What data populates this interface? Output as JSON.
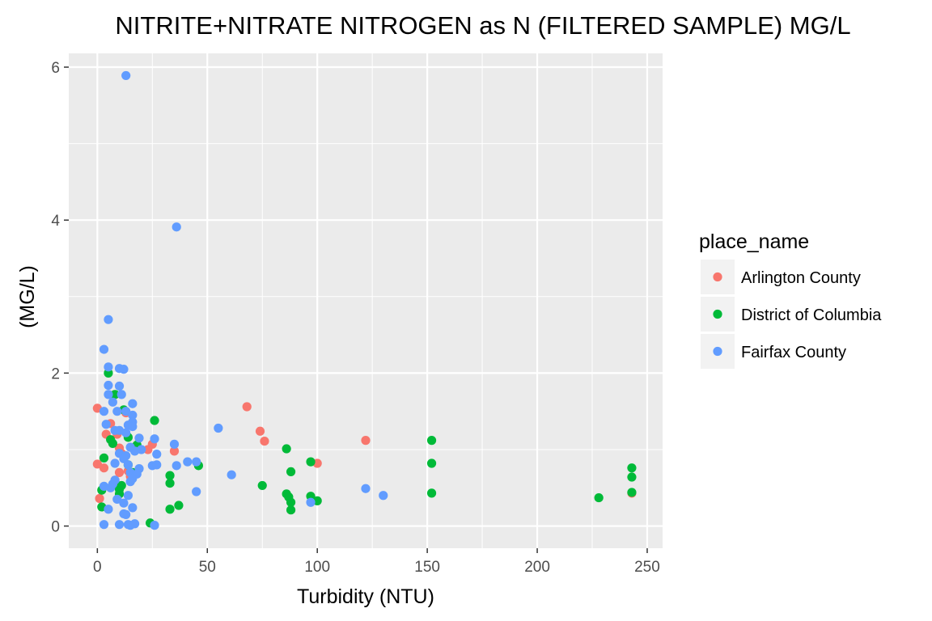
{
  "chart_data": {
    "type": "scatter",
    "title": "NITRITE+NITRATE NITROGEN as N (FILTERED SAMPLE) MG/L",
    "xlabel": "Turbidity (NTU)",
    "ylabel": "(MG/L)",
    "xlim": [
      -13,
      257
    ],
    "ylim": [
      -0.29,
      6.18
    ],
    "x_ticks": [
      0,
      50,
      100,
      150,
      200,
      250
    ],
    "y_ticks": [
      0,
      2,
      4,
      6
    ],
    "grid": true,
    "legend": {
      "title": "place_name",
      "position": "right"
    },
    "series": [
      {
        "name": "Arlington County",
        "color": "#F8766D",
        "points": [
          [
            0,
            1.54
          ],
          [
            0,
            0.81
          ],
          [
            1,
            0.36
          ],
          [
            3,
            0.76
          ],
          [
            4,
            1.2
          ],
          [
            6,
            1.34
          ],
          [
            8,
            0.6
          ],
          [
            9,
            1.2
          ],
          [
            10,
            1.02
          ],
          [
            10,
            0.7
          ],
          [
            11,
            0.95
          ],
          [
            13,
            1.48
          ],
          [
            14,
            0.72
          ],
          [
            15,
            0.65
          ],
          [
            23,
            1.0
          ],
          [
            25,
            1.07
          ],
          [
            35,
            0.98
          ],
          [
            68,
            1.56
          ],
          [
            74,
            1.24
          ],
          [
            76,
            1.11
          ],
          [
            100,
            0.82
          ],
          [
            122,
            1.12
          ],
          [
            243,
            0.43
          ]
        ]
      },
      {
        "name": "District of Columbia",
        "color": "#00BA38",
        "points": [
          [
            2,
            0.47
          ],
          [
            2,
            0.25
          ],
          [
            3,
            0.89
          ],
          [
            5,
            2.0
          ],
          [
            6,
            1.13
          ],
          [
            7,
            1.08
          ],
          [
            8,
            1.72
          ],
          [
            10,
            0.48
          ],
          [
            10,
            0.42
          ],
          [
            11,
            0.53
          ],
          [
            12,
            1.52
          ],
          [
            14,
            1.16
          ],
          [
            14,
            0.8
          ],
          [
            16,
            0.7
          ],
          [
            18,
            1.06
          ],
          [
            24,
            0.04
          ],
          [
            26,
            1.38
          ],
          [
            33,
            0.66
          ],
          [
            33,
            0.56
          ],
          [
            33,
            0.22
          ],
          [
            37,
            0.27
          ],
          [
            46,
            0.79
          ],
          [
            75,
            0.53
          ],
          [
            86,
            1.01
          ],
          [
            86,
            0.42
          ],
          [
            87,
            0.38
          ],
          [
            88,
            0.71
          ],
          [
            88,
            0.31
          ],
          [
            88,
            0.21
          ],
          [
            97,
            0.84
          ],
          [
            97,
            0.39
          ],
          [
            100,
            0.33
          ],
          [
            152,
            1.12
          ],
          [
            152,
            0.82
          ],
          [
            152,
            0.43
          ],
          [
            228,
            0.37
          ],
          [
            243,
            0.76
          ],
          [
            243,
            0.64
          ],
          [
            243,
            0.44
          ]
        ]
      },
      {
        "name": "Fairfax County",
        "color": "#619CFF",
        "points": [
          [
            13,
            5.89
          ],
          [
            36,
            3.91
          ],
          [
            5,
            2.7
          ],
          [
            3,
            2.31
          ],
          [
            5,
            2.08
          ],
          [
            10,
            2.06
          ],
          [
            12,
            2.05
          ],
          [
            5,
            1.84
          ],
          [
            10,
            1.83
          ],
          [
            5,
            1.72
          ],
          [
            11,
            1.72
          ],
          [
            7,
            1.62
          ],
          [
            16,
            1.6
          ],
          [
            3,
            1.5
          ],
          [
            9,
            1.5
          ],
          [
            13,
            1.5
          ],
          [
            16,
            1.45
          ],
          [
            16,
            1.36
          ],
          [
            4,
            1.33
          ],
          [
            14,
            1.32
          ],
          [
            16,
            1.3
          ],
          [
            8,
            1.25
          ],
          [
            10,
            1.25
          ],
          [
            13,
            1.22
          ],
          [
            19,
            1.15
          ],
          [
            26,
            1.14
          ],
          [
            35,
            1.07
          ],
          [
            15,
            1.03
          ],
          [
            17,
            0.98
          ],
          [
            20,
            1.0
          ],
          [
            10,
            0.95
          ],
          [
            13,
            0.92
          ],
          [
            12,
            0.88
          ],
          [
            8,
            0.82
          ],
          [
            14,
            0.8
          ],
          [
            19,
            0.75
          ],
          [
            15,
            0.7
          ],
          [
            18,
            0.68
          ],
          [
            16,
            0.62
          ],
          [
            15,
            0.58
          ],
          [
            7,
            0.55
          ],
          [
            6,
            0.5
          ],
          [
            3,
            0.52
          ],
          [
            14,
            0.4
          ],
          [
            9,
            0.35
          ],
          [
            12,
            0.3
          ],
          [
            16,
            0.24
          ],
          [
            5,
            0.22
          ],
          [
            12,
            0.16
          ],
          [
            13,
            0.15
          ],
          [
            10,
            0.02
          ],
          [
            14,
            0.02
          ],
          [
            15,
            0.01
          ],
          [
            17,
            0.03
          ],
          [
            3,
            0.02
          ],
          [
            26,
            0.01
          ],
          [
            27,
            0.94
          ],
          [
            25,
            0.79
          ],
          [
            27,
            0.8
          ],
          [
            36,
            0.79
          ],
          [
            41,
            0.84
          ],
          [
            45,
            0.84
          ],
          [
            45,
            0.45
          ],
          [
            55,
            1.28
          ],
          [
            61,
            0.67
          ],
          [
            97,
            0.31
          ],
          [
            122,
            0.49
          ],
          [
            130,
            0.4
          ],
          [
            8,
            0.6
          ]
        ]
      }
    ]
  }
}
